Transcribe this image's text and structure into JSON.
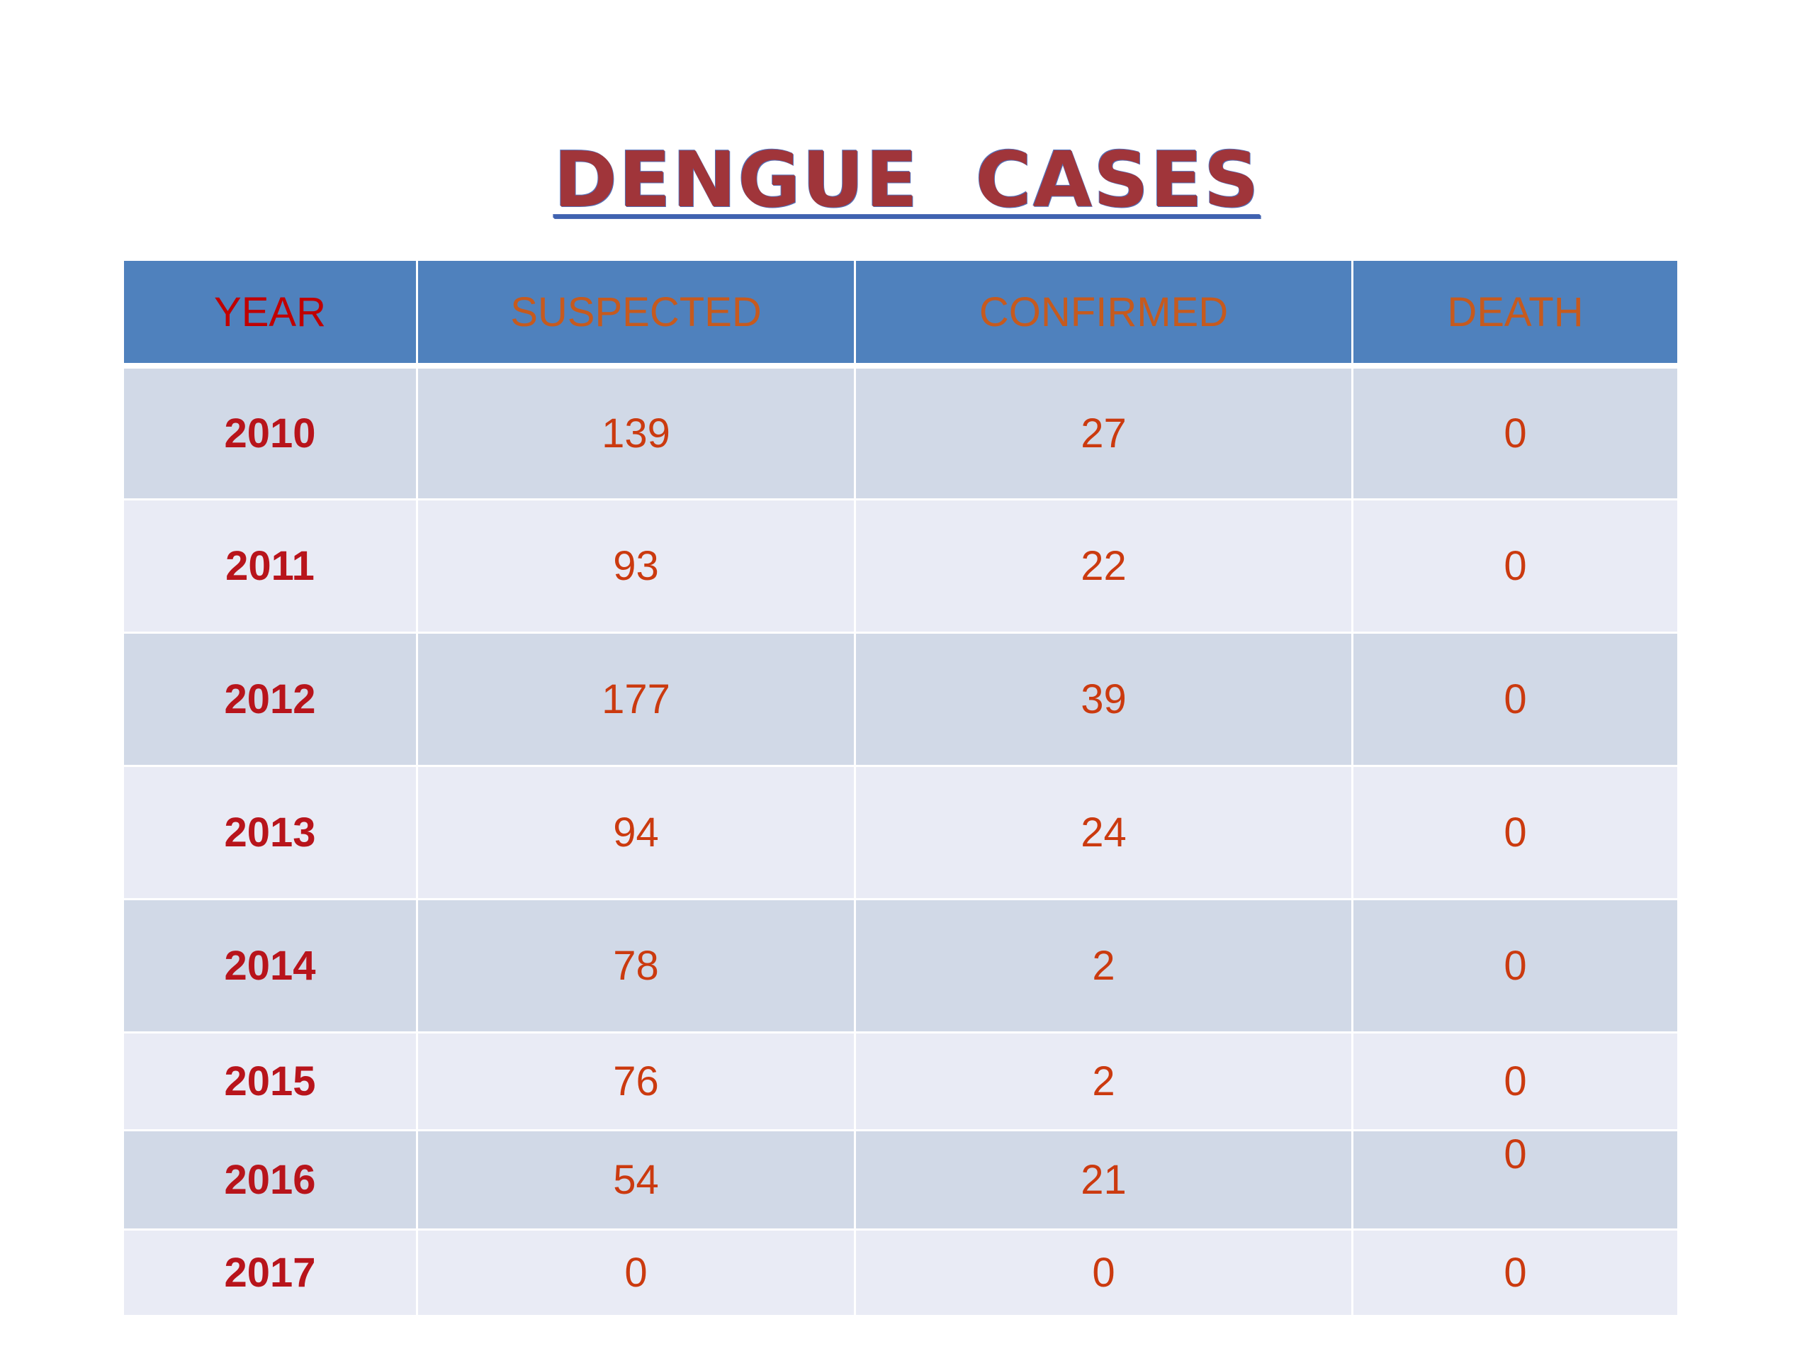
{
  "title": "DENGUE  CASES",
  "table": {
    "headers": [
      "YEAR",
      "SUSPECTED",
      "CONFIRMED",
      "DEATH"
    ],
    "rows": [
      {
        "year": "2010",
        "suspected": "139",
        "confirmed": "27",
        "death": "0"
      },
      {
        "year": "2011",
        "suspected": "93",
        "confirmed": "22",
        "death": "0"
      },
      {
        "year": "2012",
        "suspected": "177",
        "confirmed": "39",
        "death": "0"
      },
      {
        "year": "2013",
        "suspected": "94",
        "confirmed": "24",
        "death": "0"
      },
      {
        "year": "2014",
        "suspected": "78",
        "confirmed": "2",
        "death": "0"
      },
      {
        "year": "2015",
        "suspected": "76",
        "confirmed": "2",
        "death": "0"
      },
      {
        "year": "2016",
        "suspected": "54",
        "confirmed": "21",
        "death": "0"
      },
      {
        "year": "2017",
        "suspected": "0",
        "confirmed": "0",
        "death": "0"
      }
    ]
  },
  "colors": {
    "header_bg": "#4f81bd",
    "row_odd": "#d1d9e7",
    "row_even": "#e9ebf5",
    "title": "#a0353a",
    "year_text": "#b8141b",
    "value_text": "#cb3a0f"
  }
}
